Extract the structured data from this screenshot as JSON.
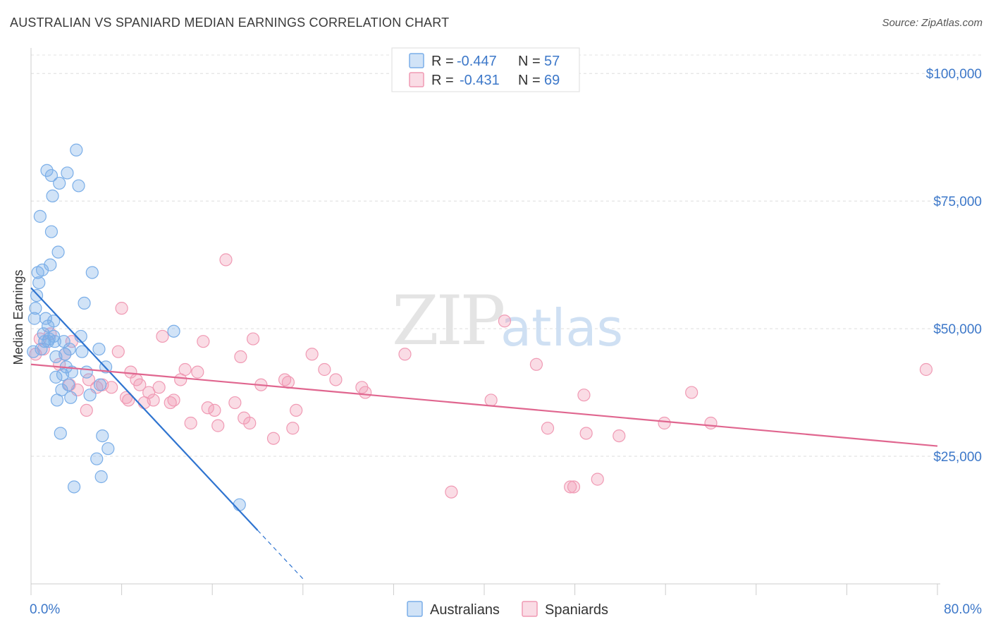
{
  "title": "AUSTRALIAN VS SPANIARD MEDIAN EARNINGS CORRELATION CHART",
  "source": "Source: ZipAtlas.com",
  "watermark": {
    "zip": "ZIP",
    "atlas": "atlas"
  },
  "colors": {
    "blue": "#7aaee8",
    "blue_fill": "rgba(122,174,232,0.35)",
    "blue_line": "#2f74d0",
    "pink": "#f09ab4",
    "pink_fill": "rgba(240,154,180,0.35)",
    "pink_line": "#e0668f",
    "grid": "#dddddd",
    "accent_text": "#3d78c9"
  },
  "legend": {
    "row1": {
      "r_label": "R =",
      "r_value": "-0.447",
      "n_label": "N =",
      "n_value": "57"
    },
    "row2": {
      "r_label": "R =",
      "r_value": "-0.431",
      "n_label": "N =",
      "n_value": "69"
    }
  },
  "chart_data": {
    "type": "scatter",
    "title": "AUSTRALIAN VS SPANIARD MEDIAN EARNINGS CORRELATION CHART",
    "xlabel": "",
    "ylabel": "Median Earnings",
    "xlim": [
      0,
      80
    ],
    "ylim": [
      0,
      105000
    ],
    "x_tick_labels": [
      "0.0%",
      "80.0%"
    ],
    "y_ticks": [
      {
        "value": 25000,
        "label": "$25,000"
      },
      {
        "value": 50000,
        "label": "$50,000"
      },
      {
        "value": 75000,
        "label": "$75,000"
      },
      {
        "value": 100000,
        "label": "$100,000"
      }
    ],
    "series": [
      {
        "name": "Australians",
        "color": "#7aaee8",
        "points": [
          [
            0.2,
            45500
          ],
          [
            0.3,
            52000
          ],
          [
            0.4,
            54000
          ],
          [
            0.5,
            56500
          ],
          [
            0.6,
            61000
          ],
          [
            0.7,
            59000
          ],
          [
            0.8,
            72000
          ],
          [
            1.0,
            61500
          ],
          [
            1.1,
            49000
          ],
          [
            1.2,
            47500
          ],
          [
            1.3,
            52000
          ],
          [
            1.4,
            81000
          ],
          [
            1.5,
            50500
          ],
          [
            1.6,
            48000
          ],
          [
            1.7,
            62500
          ],
          [
            1.8,
            80000
          ],
          [
            1.8,
            69000
          ],
          [
            1.9,
            76000
          ],
          [
            2.0,
            51500
          ],
          [
            2.0,
            48500
          ],
          [
            2.1,
            47500
          ],
          [
            2.2,
            44500
          ],
          [
            2.2,
            40500
          ],
          [
            2.3,
            36000
          ],
          [
            2.4,
            65000
          ],
          [
            2.5,
            78500
          ],
          [
            2.6,
            29500
          ],
          [
            2.7,
            38000
          ],
          [
            2.8,
            41000
          ],
          [
            2.9,
            47500
          ],
          [
            3.0,
            45000
          ],
          [
            3.1,
            42500
          ],
          [
            3.2,
            80500
          ],
          [
            3.3,
            39000
          ],
          [
            3.5,
            36500
          ],
          [
            3.6,
            41500
          ],
          [
            3.8,
            19000
          ],
          [
            4.0,
            85000
          ],
          [
            4.2,
            78000
          ],
          [
            4.4,
            48500
          ],
          [
            4.5,
            45500
          ],
          [
            4.7,
            55000
          ],
          [
            4.9,
            41500
          ],
          [
            5.2,
            37000
          ],
          [
            5.4,
            61000
          ],
          [
            5.8,
            24500
          ],
          [
            6.0,
            46000
          ],
          [
            6.1,
            39000
          ],
          [
            6.2,
            21000
          ],
          [
            6.3,
            29000
          ],
          [
            6.6,
            42500
          ],
          [
            6.8,
            26500
          ],
          [
            12.6,
            49500
          ],
          [
            18.4,
            15500
          ],
          [
            0.9,
            46000
          ],
          [
            1.5,
            47500
          ],
          [
            3.4,
            46000
          ]
        ]
      },
      {
        "name": "Spaniards",
        "color": "#f09ab4",
        "points": [
          [
            0.4,
            45000
          ],
          [
            0.8,
            48000
          ],
          [
            1.1,
            46000
          ],
          [
            1.7,
            49000
          ],
          [
            2.5,
            43000
          ],
          [
            3.0,
            45000
          ],
          [
            3.4,
            39000
          ],
          [
            3.6,
            47500
          ],
          [
            4.1,
            38000
          ],
          [
            4.9,
            34000
          ],
          [
            5.1,
            40000
          ],
          [
            5.8,
            38500
          ],
          [
            6.3,
            39000
          ],
          [
            7.1,
            38500
          ],
          [
            7.7,
            45500
          ],
          [
            8.0,
            54000
          ],
          [
            8.4,
            36500
          ],
          [
            8.6,
            36000
          ],
          [
            8.8,
            41500
          ],
          [
            9.3,
            40000
          ],
          [
            9.6,
            39000
          ],
          [
            10.0,
            35500
          ],
          [
            10.4,
            37500
          ],
          [
            10.8,
            36000
          ],
          [
            11.3,
            38500
          ],
          [
            11.6,
            48500
          ],
          [
            12.3,
            35500
          ],
          [
            12.6,
            36000
          ],
          [
            13.2,
            40000
          ],
          [
            13.6,
            42000
          ],
          [
            14.1,
            31500
          ],
          [
            14.7,
            41500
          ],
          [
            15.2,
            47500
          ],
          [
            15.6,
            34500
          ],
          [
            16.2,
            34000
          ],
          [
            16.5,
            31000
          ],
          [
            17.2,
            63500
          ],
          [
            18.0,
            35500
          ],
          [
            18.5,
            44500
          ],
          [
            18.8,
            32500
          ],
          [
            19.3,
            31500
          ],
          [
            19.6,
            48000
          ],
          [
            20.3,
            39000
          ],
          [
            21.4,
            28500
          ],
          [
            22.4,
            40000
          ],
          [
            22.7,
            39500
          ],
          [
            23.1,
            30500
          ],
          [
            23.4,
            34000
          ],
          [
            24.8,
            45000
          ],
          [
            25.9,
            42000
          ],
          [
            26.9,
            40000
          ],
          [
            29.2,
            38500
          ],
          [
            29.5,
            37500
          ],
          [
            33.0,
            45000
          ],
          [
            37.1,
            18000
          ],
          [
            40.6,
            36000
          ],
          [
            41.8,
            51500
          ],
          [
            44.6,
            43000
          ],
          [
            45.6,
            30500
          ],
          [
            47.6,
            19000
          ],
          [
            47.9,
            19000
          ],
          [
            48.8,
            37000
          ],
          [
            49.0,
            29500
          ],
          [
            50.0,
            20500
          ],
          [
            51.9,
            29000
          ],
          [
            55.9,
            31500
          ],
          [
            58.3,
            37500
          ],
          [
            60.0,
            31500
          ],
          [
            79.0,
            42000
          ]
        ]
      }
    ],
    "trend_lines": [
      {
        "name": "Australians",
        "x": [
          0,
          20
        ],
        "y": [
          58000,
          10500
        ],
        "dashed_to": [
          24,
          1000
        ]
      },
      {
        "name": "Spaniards",
        "x": [
          0,
          80
        ],
        "y": [
          43000,
          27000
        ]
      }
    ]
  },
  "bottom_legend": {
    "australians": "Australians",
    "spaniards": "Spaniards"
  }
}
